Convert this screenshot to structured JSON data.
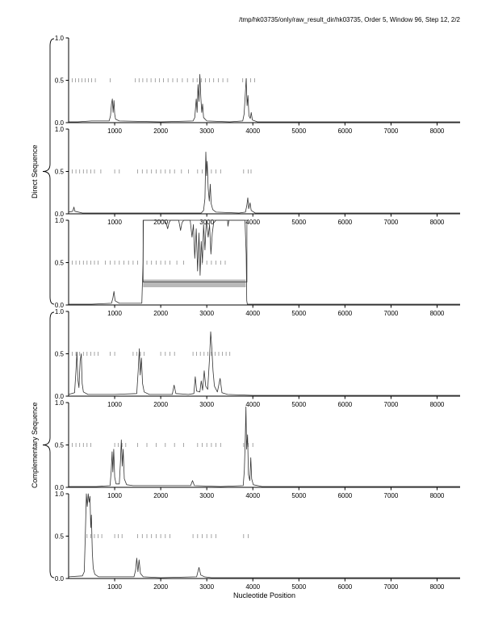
{
  "header": {
    "title": "/tmp/hk03735/only/raw_result_dir/hk03735, Order 5, Window 96, Step 12, 2/2"
  },
  "labels": {
    "direct": "Direct Sequence",
    "complementary": "Complementary Sequence",
    "x_axis": "Nucleotide Position"
  },
  "colors": {
    "line": "#333333",
    "marker": "#8f8f8f",
    "axis": "#000000",
    "box_line": "#444444",
    "box_fill": "#b9b9b9"
  },
  "chart_data": {
    "type": "line",
    "title": "/tmp/hk03735/only/raw_result_dir/hk03735, Order 5, Window 96, Step 12, 2/2",
    "xlabel": "Nucleotide Position",
    "ylabel_groups": [
      "Direct Sequence",
      "Complementary Sequence"
    ],
    "xlim": [
      0,
      8500
    ],
    "ylim": [
      0,
      1
    ],
    "x_ticks": [
      1000,
      2000,
      3000,
      4000,
      5000,
      6000,
      7000,
      8000
    ],
    "y_ticks": [
      {
        "v": 0,
        "label": "0.0"
      },
      {
        "v": 0.5,
        "label": "0.5"
      },
      {
        "v": 1,
        "label": "1.0"
      }
    ],
    "panels": [
      {
        "sequence": "direct",
        "curve": [
          [
            0,
            0.01
          ],
          [
            200,
            0.01
          ],
          [
            500,
            0.02
          ],
          [
            880,
            0.02
          ],
          [
            910,
            0.08
          ],
          [
            930,
            0.22
          ],
          [
            950,
            0.28
          ],
          [
            965,
            0.12
          ],
          [
            985,
            0.26
          ],
          [
            1000,
            0.1
          ],
          [
            1020,
            0.04
          ],
          [
            1100,
            0.02
          ],
          [
            2000,
            0.01
          ],
          [
            2700,
            0.02
          ],
          [
            2740,
            0.06
          ],
          [
            2770,
            0.28
          ],
          [
            2790,
            0.12
          ],
          [
            2810,
            0.45
          ],
          [
            2830,
            0.25
          ],
          [
            2850,
            0.57
          ],
          [
            2870,
            0.3
          ],
          [
            2890,
            0.12
          ],
          [
            2910,
            0.22
          ],
          [
            2930,
            0.06
          ],
          [
            3000,
            0.02
          ],
          [
            3500,
            0.01
          ],
          [
            3780,
            0.02
          ],
          [
            3810,
            0.1
          ],
          [
            3835,
            0.32
          ],
          [
            3855,
            0.52
          ],
          [
            3875,
            0.2
          ],
          [
            3895,
            0.32
          ],
          [
            3915,
            0.08
          ],
          [
            3945,
            0.05
          ],
          [
            3965,
            0.12
          ],
          [
            3990,
            0.03
          ],
          [
            4100,
            0.01
          ],
          [
            5000,
            0.01
          ],
          [
            8500,
            0.01
          ]
        ],
        "markers": [
          80,
          150,
          220,
          290,
          360,
          430,
          500,
          580,
          900,
          1450,
          1530,
          1610,
          1700,
          1790,
          1880,
          1970,
          2060,
          2160,
          2260,
          2360,
          2470,
          2580,
          2700,
          2790,
          2880,
          2970,
          3060,
          3150,
          3250,
          3350,
          3450,
          3780,
          3860,
          3950,
          4040
        ],
        "box": null
      },
      {
        "sequence": "direct",
        "curve": [
          [
            0,
            0.02
          ],
          [
            90,
            0.03
          ],
          [
            115,
            0.08
          ],
          [
            135,
            0.03
          ],
          [
            300,
            0.01
          ],
          [
            1500,
            0.01
          ],
          [
            2880,
            0.01
          ],
          [
            2930,
            0.04
          ],
          [
            2960,
            0.18
          ],
          [
            2980,
            0.73
          ],
          [
            2995,
            0.45
          ],
          [
            3010,
            0.62
          ],
          [
            3030,
            0.3
          ],
          [
            3055,
            0.15
          ],
          [
            3075,
            0.35
          ],
          [
            3095,
            0.12
          ],
          [
            3130,
            0.05
          ],
          [
            3200,
            0.02
          ],
          [
            3700,
            0.01
          ],
          [
            3840,
            0.02
          ],
          [
            3870,
            0.1
          ],
          [
            3890,
            0.19
          ],
          [
            3910,
            0.06
          ],
          [
            3940,
            0.13
          ],
          [
            3965,
            0.04
          ],
          [
            4050,
            0.01
          ],
          [
            8500,
            0.01
          ]
        ],
        "markers": [
          80,
          160,
          240,
          320,
          400,
          480,
          560,
          700,
          1000,
          1100,
          1500,
          1600,
          1700,
          1800,
          1900,
          2000,
          2100,
          2200,
          2300,
          2450,
          2600,
          2800,
          2900,
          3000,
          3100,
          3200,
          3300,
          3800,
          3900,
          3960
        ],
        "box": null
      },
      {
        "sequence": "direct",
        "curve": [
          [
            0,
            0.01
          ],
          [
            500,
            0.01
          ],
          [
            930,
            0.02
          ],
          [
            960,
            0.08
          ],
          [
            985,
            0.16
          ],
          [
            1010,
            0.05
          ],
          [
            1100,
            0.02
          ],
          [
            1590,
            0.02
          ],
          [
            1615,
            0.5
          ],
          [
            1625,
            1.0
          ],
          [
            2080,
            1.0
          ],
          [
            2120,
            0.96
          ],
          [
            2150,
            0.9
          ],
          [
            2180,
            0.97
          ],
          [
            2210,
            1.0
          ],
          [
            2390,
            1.0
          ],
          [
            2430,
            0.88
          ],
          [
            2460,
            0.97
          ],
          [
            2500,
            1.0
          ],
          [
            2640,
            1.0
          ],
          [
            2680,
            0.8
          ],
          [
            2710,
            0.95
          ],
          [
            2740,
            0.55
          ],
          [
            2770,
            0.9
          ],
          [
            2800,
            0.4
          ],
          [
            2830,
            0.85
          ],
          [
            2855,
            0.35
          ],
          [
            2880,
            0.75
          ],
          [
            2905,
            0.5
          ],
          [
            2930,
            0.95
          ],
          [
            2960,
            0.65
          ],
          [
            2990,
            1.0
          ],
          [
            3030,
            0.8
          ],
          [
            3060,
            0.95
          ],
          [
            3090,
            0.6
          ],
          [
            3120,
            0.85
          ],
          [
            3150,
            0.97
          ],
          [
            3200,
            1.0
          ],
          [
            3450,
            1.0
          ],
          [
            3460,
            0.93
          ],
          [
            3480,
            1.0
          ],
          [
            3830,
            1.0
          ],
          [
            3855,
            0.6
          ],
          [
            3868,
            0.05
          ],
          [
            3880,
            0.01
          ],
          [
            4000,
            0.01
          ],
          [
            8500,
            0.01
          ]
        ],
        "markers": [
          80,
          160,
          240,
          320,
          400,
          480,
          560,
          640,
          800,
          900,
          1000,
          1100,
          1200,
          1300,
          1400,
          1500,
          1700,
          1800,
          1900,
          2000,
          2100,
          2200,
          2350,
          2500,
          2800,
          2900,
          3000,
          3100,
          3200,
          3300,
          3400
        ],
        "box": {
          "x1": 1618,
          "x2": 3872,
          "y1": 0.27,
          "y2": 1.0,
          "bar": {
            "x1": 1618,
            "x2": 3845,
            "y1": 0.21,
            "y2": 0.3
          }
        }
      },
      {
        "sequence": "complementary",
        "curve": [
          [
            0,
            0.02
          ],
          [
            130,
            0.04
          ],
          [
            160,
            0.3
          ],
          [
            180,
            0.52
          ],
          [
            200,
            0.2
          ],
          [
            225,
            0.1
          ],
          [
            250,
            0.42
          ],
          [
            275,
            0.5
          ],
          [
            295,
            0.15
          ],
          [
            320,
            0.05
          ],
          [
            420,
            0.02
          ],
          [
            1000,
            0.02
          ],
          [
            1480,
            0.03
          ],
          [
            1510,
            0.3
          ],
          [
            1535,
            0.56
          ],
          [
            1555,
            0.25
          ],
          [
            1580,
            0.45
          ],
          [
            1605,
            0.15
          ],
          [
            1640,
            0.05
          ],
          [
            1750,
            0.02
          ],
          [
            2250,
            0.02
          ],
          [
            2290,
            0.13
          ],
          [
            2330,
            0.03
          ],
          [
            2600,
            0.02
          ],
          [
            2720,
            0.03
          ],
          [
            2750,
            0.23
          ],
          [
            2780,
            0.06
          ],
          [
            2850,
            0.05
          ],
          [
            2880,
            0.18
          ],
          [
            2910,
            0.07
          ],
          [
            2945,
            0.3
          ],
          [
            2975,
            0.12
          ],
          [
            3020,
            0.08
          ],
          [
            3060,
            0.45
          ],
          [
            3085,
            0.76
          ],
          [
            3110,
            0.55
          ],
          [
            3135,
            0.3
          ],
          [
            3165,
            0.12
          ],
          [
            3230,
            0.05
          ],
          [
            3290,
            0.21
          ],
          [
            3330,
            0.04
          ],
          [
            3450,
            0.02
          ],
          [
            4000,
            0.01
          ],
          [
            8500,
            0.01
          ]
        ],
        "markers": [
          80,
          160,
          240,
          320,
          400,
          480,
          560,
          640,
          900,
          1000,
          1400,
          1480,
          1560,
          1640,
          2000,
          2100,
          2200,
          2300,
          2700,
          2780,
          2860,
          2940,
          3020,
          3100,
          3180,
          3260,
          3340,
          3420,
          3500
        ],
        "box": null
      },
      {
        "sequence": "complementary",
        "curve": [
          [
            0,
            0.01
          ],
          [
            600,
            0.01
          ],
          [
            900,
            0.02
          ],
          [
            925,
            0.2
          ],
          [
            945,
            0.42
          ],
          [
            960,
            0.18
          ],
          [
            980,
            0.45
          ],
          [
            1000,
            0.12
          ],
          [
            1030,
            0.04
          ],
          [
            1100,
            0.04
          ],
          [
            1125,
            0.3
          ],
          [
            1145,
            0.56
          ],
          [
            1165,
            0.25
          ],
          [
            1185,
            0.45
          ],
          [
            1210,
            0.1
          ],
          [
            1260,
            0.03
          ],
          [
            1400,
            0.02
          ],
          [
            1900,
            0.02
          ],
          [
            2650,
            0.02
          ],
          [
            2690,
            0.08
          ],
          [
            2730,
            0.02
          ],
          [
            3300,
            0.01
          ],
          [
            3790,
            0.02
          ],
          [
            3815,
            0.2
          ],
          [
            3835,
            0.55
          ],
          [
            3850,
            0.95
          ],
          [
            3865,
            0.45
          ],
          [
            3885,
            0.62
          ],
          [
            3905,
            0.15
          ],
          [
            3935,
            0.08
          ],
          [
            3955,
            0.35
          ],
          [
            3975,
            0.1
          ],
          [
            4010,
            0.03
          ],
          [
            4200,
            0.01
          ],
          [
            8500,
            0.01
          ]
        ],
        "markers": [
          80,
          160,
          240,
          320,
          400,
          480,
          1000,
          1080,
          1160,
          1240,
          1500,
          1700,
          1900,
          2100,
          2300,
          2500,
          2800,
          2900,
          3000,
          3100,
          3200,
          3300,
          3800,
          3900,
          4000
        ],
        "box": null
      },
      {
        "sequence": "complementary",
        "curve": [
          [
            0,
            0.02
          ],
          [
            300,
            0.03
          ],
          [
            340,
            0.08
          ],
          [
            365,
            0.55
          ],
          [
            385,
            1.0
          ],
          [
            405,
            0.85
          ],
          [
            425,
            1.0
          ],
          [
            445,
            0.9
          ],
          [
            465,
            0.97
          ],
          [
            480,
            0.6
          ],
          [
            495,
            0.75
          ],
          [
            515,
            0.3
          ],
          [
            535,
            0.12
          ],
          [
            570,
            0.05
          ],
          [
            650,
            0.02
          ],
          [
            1420,
            0.02
          ],
          [
            1455,
            0.1
          ],
          [
            1480,
            0.24
          ],
          [
            1505,
            0.08
          ],
          [
            1530,
            0.22
          ],
          [
            1560,
            0.06
          ],
          [
            1620,
            0.02
          ],
          [
            2000,
            0.01
          ],
          [
            2780,
            0.02
          ],
          [
            2830,
            0.13
          ],
          [
            2870,
            0.04
          ],
          [
            2950,
            0.02
          ],
          [
            3100,
            0.01
          ],
          [
            8500,
            0.01
          ]
        ],
        "markers": [
          400,
          480,
          560,
          640,
          720,
          1000,
          1080,
          1160,
          1500,
          1600,
          1700,
          1800,
          1900,
          2000,
          2100,
          2200,
          2700,
          2800,
          2900,
          3000,
          3100,
          3200,
          3800,
          3900
        ],
        "box": null
      }
    ]
  }
}
